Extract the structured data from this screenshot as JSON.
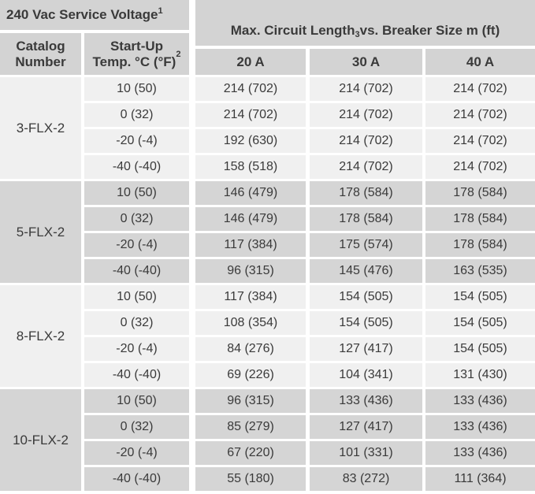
{
  "header": {
    "service_voltage": {
      "text": "240 Vac Service Voltage",
      "sup": "1"
    },
    "catalog_number_label": "Catalog Number",
    "startup_temp": {
      "line1": "Start-Up",
      "line2": "Temp. °C (°F)",
      "sup": "2"
    },
    "circuit_length": {
      "pre": "Max. Circuit Length",
      "sup": "3",
      "post": " vs. Breaker Size m (ft)"
    },
    "breaker_columns": [
      "20 A",
      "30 A",
      "40 A"
    ]
  },
  "colors": {
    "header_bg": "#d3d3d3",
    "group_light_bg": "#f0f0f0",
    "group_dark_bg": "#d5d5d5",
    "text": "#3a3a3a",
    "separator": "#ffffff"
  },
  "groups": [
    {
      "catalog": "3-FLX-2",
      "rows": [
        {
          "temp": "10 (50)",
          "values": [
            "214 (702)",
            "214 (702)",
            "214 (702)"
          ]
        },
        {
          "temp": "0 (32)",
          "values": [
            "214 (702)",
            "214 (702)",
            "214 (702)"
          ]
        },
        {
          "temp": "-20 (-4)",
          "values": [
            "192 (630)",
            "214 (702)",
            "214 (702)"
          ]
        },
        {
          "temp": "-40 (-40)",
          "values": [
            "158 (518)",
            "214 (702)",
            "214 (702)"
          ]
        }
      ]
    },
    {
      "catalog": "5-FLX-2",
      "rows": [
        {
          "temp": "10 (50)",
          "values": [
            "146 (479)",
            "178 (584)",
            "178 (584)"
          ]
        },
        {
          "temp": "0 (32)",
          "values": [
            "146 (479)",
            "178 (584)",
            "178 (584)"
          ]
        },
        {
          "temp": "-20 (-4)",
          "values": [
            "117 (384)",
            "175 (574)",
            "178 (584)"
          ]
        },
        {
          "temp": "-40 (-40)",
          "values": [
            "96 (315)",
            "145 (476)",
            "163 (535)"
          ]
        }
      ]
    },
    {
      "catalog": "8-FLX-2",
      "rows": [
        {
          "temp": "10 (50)",
          "values": [
            "117 (384)",
            "154 (505)",
            "154 (505)"
          ]
        },
        {
          "temp": "0 (32)",
          "values": [
            "108 (354)",
            "154 (505)",
            "154 (505)"
          ]
        },
        {
          "temp": "-20 (-4)",
          "values": [
            "84 (276)",
            "127 (417)",
            "154 (505)"
          ]
        },
        {
          "temp": "-40 (-40)",
          "values": [
            "69 (226)",
            "104 (341)",
            "131 (430)"
          ]
        }
      ]
    },
    {
      "catalog": "10-FLX-2",
      "rows": [
        {
          "temp": "10 (50)",
          "values": [
            "96 (315)",
            "133 (436)",
            "133 (436)"
          ]
        },
        {
          "temp": "0 (32)",
          "values": [
            "85 (279)",
            "127 (417)",
            "133 (436)"
          ]
        },
        {
          "temp": "-20 (-4)",
          "values": [
            "67 (220)",
            "101 (331)",
            "133 (436)"
          ]
        },
        {
          "temp": "-40 (-40)",
          "values": [
            "55 (180)",
            "83 (272)",
            "111 (364)"
          ]
        }
      ]
    }
  ]
}
